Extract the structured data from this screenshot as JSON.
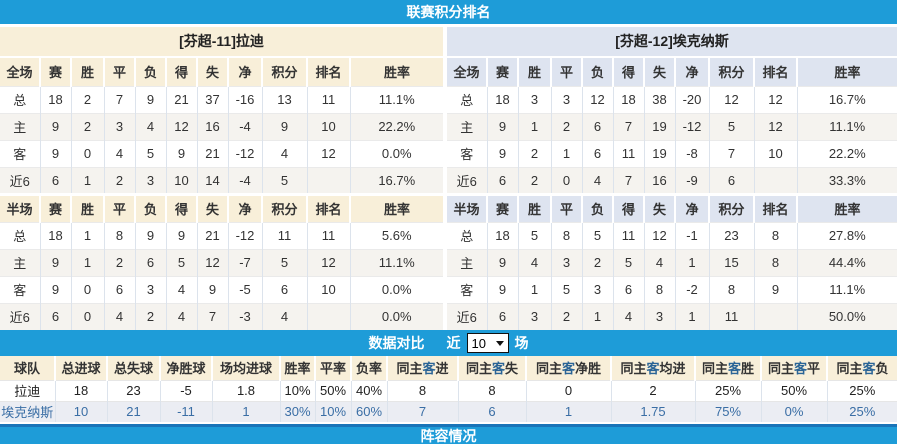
{
  "bars": {
    "top": "联赛积分排名",
    "bottom": "阵容情况",
    "compare": {
      "title": "数据对比",
      "near_label": "近",
      "matches_value": "10",
      "unit_label": "场"
    }
  },
  "colors": {
    "accent_blue": "#1E9CD8",
    "points_red": "#E8502F",
    "rank_blue": "#3E7EC0",
    "rate_red": "#E23B3B",
    "home_red": "#B00000",
    "away_blue": "#0000B0",
    "away_team_text": "#3A6EA5"
  },
  "league_tables": [
    {
      "title": "[芬超-11]拉迪",
      "theme": "cream",
      "sections": [
        {
          "headers": [
            "全场",
            "赛",
            "胜",
            "平",
            "负",
            "得",
            "失",
            "净",
            "积分",
            "排名",
            "胜率"
          ],
          "rows": [
            {
              "label": "总",
              "type": "total",
              "values": [
                "18",
                "2",
                "7",
                "9",
                "21",
                "37",
                "-16"
              ],
              "points": "13",
              "rank": "11",
              "win_rate": "11.1%"
            },
            {
              "label": "主",
              "type": "home",
              "values": [
                "9",
                "2",
                "3",
                "4",
                "12",
                "16",
                "-4"
              ],
              "points": "9",
              "rank": "10",
              "win_rate": "22.2%"
            },
            {
              "label": "客",
              "type": "away",
              "values": [
                "9",
                "0",
                "4",
                "5",
                "9",
                "21",
                "-12"
              ],
              "points": "4",
              "rank": "12",
              "win_rate": "0.0%"
            },
            {
              "label": "近6",
              "type": "recent",
              "values": [
                "6",
                "1",
                "2",
                "3",
                "10",
                "14",
                "-4"
              ],
              "points": "5",
              "rank": "",
              "win_rate": "16.7%"
            }
          ]
        },
        {
          "headers": [
            "半场",
            "赛",
            "胜",
            "平",
            "负",
            "得",
            "失",
            "净",
            "积分",
            "排名",
            "胜率"
          ],
          "rows": [
            {
              "label": "总",
              "type": "total",
              "values": [
                "18",
                "1",
                "8",
                "9",
                "9",
                "21",
                "-12"
              ],
              "points": "11",
              "rank": "11",
              "win_rate": "5.6%"
            },
            {
              "label": "主",
              "type": "home",
              "values": [
                "9",
                "1",
                "2",
                "6",
                "5",
                "12",
                "-7"
              ],
              "points": "5",
              "rank": "12",
              "win_rate": "11.1%"
            },
            {
              "label": "客",
              "type": "away",
              "values": [
                "9",
                "0",
                "6",
                "3",
                "4",
                "9",
                "-5"
              ],
              "points": "6",
              "rank": "10",
              "win_rate": "0.0%"
            },
            {
              "label": "近6",
              "type": "recent",
              "values": [
                "6",
                "0",
                "4",
                "2",
                "4",
                "7",
                "-3"
              ],
              "points": "4",
              "rank": "",
              "win_rate": "0.0%"
            }
          ]
        }
      ]
    },
    {
      "title": "[芬超-12]埃克纳斯",
      "theme": "bluet",
      "sections": [
        {
          "headers": [
            "全场",
            "赛",
            "胜",
            "平",
            "负",
            "得",
            "失",
            "净",
            "积分",
            "排名",
            "胜率"
          ],
          "rows": [
            {
              "label": "总",
              "type": "total",
              "values": [
                "18",
                "3",
                "3",
                "12",
                "18",
                "38",
                "-20"
              ],
              "points": "12",
              "rank": "12",
              "win_rate": "16.7%"
            },
            {
              "label": "主",
              "type": "home",
              "values": [
                "9",
                "1",
                "2",
                "6",
                "7",
                "19",
                "-12"
              ],
              "points": "5",
              "rank": "12",
              "win_rate": "11.1%"
            },
            {
              "label": "客",
              "type": "away",
              "values": [
                "9",
                "2",
                "1",
                "6",
                "11",
                "19",
                "-8"
              ],
              "points": "7",
              "rank": "10",
              "win_rate": "22.2%"
            },
            {
              "label": "近6",
              "type": "recent",
              "values": [
                "6",
                "2",
                "0",
                "4",
                "7",
                "16",
                "-9"
              ],
              "points": "6",
              "rank": "",
              "win_rate": "33.3%"
            }
          ]
        },
        {
          "headers": [
            "半场",
            "赛",
            "胜",
            "平",
            "负",
            "得",
            "失",
            "净",
            "积分",
            "排名",
            "胜率"
          ],
          "rows": [
            {
              "label": "总",
              "type": "total",
              "values": [
                "18",
                "5",
                "8",
                "5",
                "11",
                "12",
                "-1"
              ],
              "points": "23",
              "rank": "8",
              "win_rate": "27.8%"
            },
            {
              "label": "主",
              "type": "home",
              "values": [
                "9",
                "4",
                "3",
                "2",
                "5",
                "4",
                "1"
              ],
              "points": "15",
              "rank": "8",
              "win_rate": "44.4%"
            },
            {
              "label": "客",
              "type": "away",
              "values": [
                "9",
                "1",
                "5",
                "3",
                "6",
                "8",
                "-2"
              ],
              "points": "8",
              "rank": "9",
              "win_rate": "11.1%"
            },
            {
              "label": "近6",
              "type": "recent",
              "values": [
                "6",
                "3",
                "2",
                "1",
                "4",
                "3",
                "1"
              ],
              "points": "11",
              "rank": "",
              "win_rate": "50.0%"
            }
          ]
        }
      ]
    }
  ],
  "compare_table": {
    "headers": [
      "球队",
      "总进球",
      "总失球",
      "净胜球",
      "场均进球",
      "胜率",
      "平率",
      "负率",
      "同主客进",
      "同主客失",
      "同主客净胜",
      "同主客均进",
      "同主客胜",
      "同主客平",
      "同主客负"
    ],
    "rows": [
      {
        "team": "拉迪",
        "values": [
          "18",
          "23",
          "-5",
          "1.8",
          "10%",
          "50%",
          "40%",
          "8",
          "8",
          "0",
          "2",
          "25%",
          "50%",
          "25%"
        ]
      },
      {
        "team": "埃克纳斯",
        "values": [
          "10",
          "21",
          "-11",
          "1",
          "30%",
          "10%",
          "60%",
          "7",
          "6",
          "1",
          "1.75",
          "75%",
          "0%",
          "25%"
        ]
      }
    ]
  }
}
